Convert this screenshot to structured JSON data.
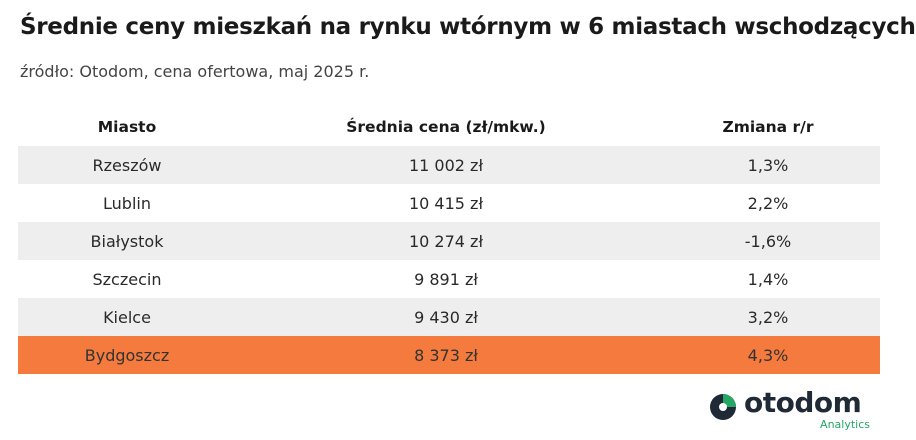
{
  "title": "Średnie ceny mieszkań na rynku wtórnym w 6 miastach wschodzących",
  "subtitle": "źródło: Otodom, cena ofertowa, maj 2025 r.",
  "brand": {
    "name": "otodom",
    "tagline": "Analytics",
    "color_dark": "#1f2a36",
    "color_green": "#24a864"
  },
  "colors": {
    "highlight": "#f47b3d",
    "shaded_row": "#eeeeee"
  },
  "chart_data": {
    "type": "table",
    "columns": [
      "Miasto",
      "Średnia cena (zł/mkw.)",
      "Zmiana r/r"
    ],
    "rows": [
      {
        "city": "Rzeszów",
        "price": "11 002 zł",
        "change": "1,3%"
      },
      {
        "city": "Lublin",
        "price": "10 415 zł",
        "change": "2,2%"
      },
      {
        "city": "Białystok",
        "price": "10 274 zł",
        "change": "-1,6%"
      },
      {
        "city": "Szczecin",
        "price": "9 891 zł",
        "change": "1,4%"
      },
      {
        "city": "Kielce",
        "price": "9 430 zł",
        "change": "3,2%"
      },
      {
        "city": "Bydgoszcz",
        "price": "8 373 zł",
        "change": "4,3%"
      }
    ],
    "highlighted_row": "Bydgoszcz"
  }
}
